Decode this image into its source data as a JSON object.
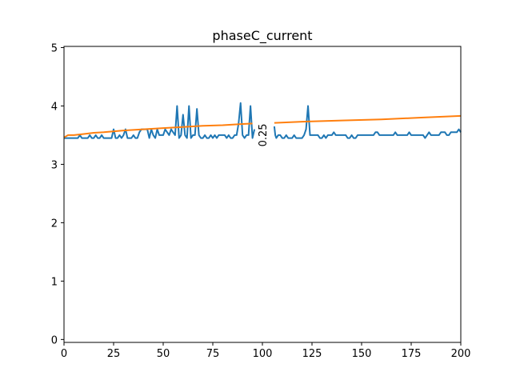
{
  "chart_data": {
    "type": "line",
    "title": "phaseC_current",
    "xlabel": "",
    "ylabel": "",
    "xlim": [
      0,
      200
    ],
    "ylim": [
      -0.05,
      5.02
    ],
    "xticks": [
      0,
      25,
      50,
      75,
      100,
      125,
      150,
      175,
      200
    ],
    "yticks": [
      0,
      1,
      2,
      3,
      4,
      5
    ],
    "grid": false,
    "annotation": {
      "text": "0.25",
      "x": 100,
      "y": 3.5,
      "rotation": -90
    },
    "series": [
      {
        "color": "#1f77b4",
        "segments": [
          [
            [
              0,
              3.45
            ],
            [
              1,
              3.45
            ],
            [
              2,
              3.45
            ],
            [
              3,
              3.45
            ],
            [
              4,
              3.45
            ],
            [
              5,
              3.45
            ],
            [
              6,
              3.45
            ],
            [
              7,
              3.45
            ],
            [
              8,
              3.5
            ],
            [
              9,
              3.45
            ],
            [
              10,
              3.45
            ],
            [
              11,
              3.45
            ],
            [
              12,
              3.45
            ],
            [
              13,
              3.5
            ],
            [
              14,
              3.45
            ],
            [
              15,
              3.45
            ],
            [
              16,
              3.5
            ],
            [
              17,
              3.45
            ],
            [
              18,
              3.45
            ],
            [
              19,
              3.5
            ],
            [
              20,
              3.45
            ],
            [
              21,
              3.45
            ],
            [
              22,
              3.45
            ],
            [
              23,
              3.45
            ],
            [
              24,
              3.45
            ],
            [
              25,
              3.6
            ],
            [
              26,
              3.45
            ],
            [
              27,
              3.45
            ],
            [
              28,
              3.5
            ],
            [
              29,
              3.45
            ],
            [
              30,
              3.5
            ],
            [
              31,
              3.6
            ],
            [
              32,
              3.45
            ],
            [
              33,
              3.45
            ],
            [
              34,
              3.45
            ],
            [
              35,
              3.5
            ],
            [
              36,
              3.45
            ],
            [
              37,
              3.45
            ],
            [
              38,
              3.55
            ],
            [
              39,
              3.6
            ],
            [
              40,
              3.6
            ],
            [
              41,
              3.6
            ],
            [
              42,
              3.6
            ],
            [
              43,
              3.45
            ],
            [
              44,
              3.6
            ],
            [
              45,
              3.5
            ],
            [
              46,
              3.45
            ],
            [
              47,
              3.6
            ],
            [
              48,
              3.5
            ],
            [
              49,
              3.5
            ],
            [
              50,
              3.5
            ],
            [
              51,
              3.6
            ],
            [
              52,
              3.55
            ],
            [
              53,
              3.5
            ],
            [
              54,
              3.6
            ],
            [
              55,
              3.55
            ],
            [
              56,
              3.5
            ],
            [
              57,
              4.0
            ],
            [
              58,
              3.45
            ],
            [
              59,
              3.5
            ],
            [
              60,
              3.85
            ],
            [
              61,
              3.5
            ],
            [
              62,
              3.45
            ],
            [
              63,
              4.0
            ],
            [
              64,
              3.45
            ],
            [
              65,
              3.5
            ],
            [
              66,
              3.5
            ],
            [
              67,
              3.95
            ],
            [
              68,
              3.5
            ],
            [
              69,
              3.45
            ],
            [
              70,
              3.45
            ],
            [
              71,
              3.5
            ],
            [
              72,
              3.45
            ],
            [
              73,
              3.45
            ],
            [
              74,
              3.5
            ],
            [
              75,
              3.45
            ],
            [
              76,
              3.5
            ],
            [
              77,
              3.45
            ],
            [
              78,
              3.5
            ],
            [
              79,
              3.5
            ],
            [
              80,
              3.5
            ],
            [
              81,
              3.5
            ],
            [
              82,
              3.45
            ],
            [
              83,
              3.5
            ],
            [
              84,
              3.45
            ],
            [
              85,
              3.45
            ],
            [
              86,
              3.5
            ],
            [
              87,
              3.5
            ],
            [
              88,
              3.7
            ],
            [
              89,
              4.05
            ],
            [
              90,
              3.5
            ],
            [
              91,
              3.45
            ],
            [
              92,
              3.5
            ],
            [
              93,
              3.5
            ],
            [
              94,
              4.0
            ],
            [
              95,
              3.45
            ],
            [
              96,
              3.6
            ]
          ],
          [
            [
              106,
              3.65
            ],
            [
              106.5,
              3.5
            ],
            [
              107,
              3.45
            ],
            [
              108,
              3.5
            ],
            [
              109,
              3.5
            ],
            [
              110,
              3.45
            ],
            [
              111,
              3.45
            ],
            [
              112,
              3.5
            ],
            [
              113,
              3.45
            ],
            [
              114,
              3.45
            ],
            [
              115,
              3.45
            ],
            [
              116,
              3.5
            ],
            [
              117,
              3.45
            ],
            [
              118,
              3.45
            ],
            [
              119,
              3.45
            ],
            [
              120,
              3.45
            ],
            [
              121,
              3.5
            ],
            [
              122,
              3.6
            ],
            [
              123,
              4.0
            ],
            [
              124,
              3.5
            ],
            [
              125,
              3.5
            ],
            [
              126,
              3.5
            ],
            [
              127,
              3.5
            ],
            [
              128,
              3.5
            ],
            [
              129,
              3.45
            ],
            [
              130,
              3.45
            ],
            [
              131,
              3.5
            ],
            [
              132,
              3.45
            ],
            [
              133,
              3.5
            ],
            [
              134,
              3.5
            ],
            [
              135,
              3.5
            ],
            [
              136,
              3.55
            ],
            [
              137,
              3.5
            ],
            [
              138,
              3.5
            ],
            [
              139,
              3.5
            ],
            [
              140,
              3.5
            ],
            [
              141,
              3.5
            ],
            [
              142,
              3.5
            ],
            [
              143,
              3.45
            ],
            [
              144,
              3.45
            ],
            [
              145,
              3.5
            ],
            [
              146,
              3.45
            ],
            [
              147,
              3.45
            ],
            [
              148,
              3.5
            ],
            [
              149,
              3.5
            ],
            [
              150,
              3.5
            ],
            [
              151,
              3.5
            ],
            [
              152,
              3.5
            ],
            [
              153,
              3.5
            ],
            [
              154,
              3.5
            ],
            [
              155,
              3.5
            ],
            [
              156,
              3.5
            ],
            [
              157,
              3.55
            ],
            [
              158,
              3.55
            ],
            [
              159,
              3.5
            ],
            [
              160,
              3.5
            ],
            [
              161,
              3.5
            ],
            [
              162,
              3.5
            ],
            [
              163,
              3.5
            ],
            [
              164,
              3.5
            ],
            [
              165,
              3.5
            ],
            [
              166,
              3.5
            ],
            [
              167,
              3.55
            ],
            [
              168,
              3.5
            ],
            [
              169,
              3.5
            ],
            [
              170,
              3.5
            ],
            [
              171,
              3.5
            ],
            [
              172,
              3.5
            ],
            [
              173,
              3.5
            ],
            [
              174,
              3.55
            ],
            [
              175,
              3.5
            ],
            [
              176,
              3.5
            ],
            [
              177,
              3.5
            ],
            [
              178,
              3.5
            ],
            [
              179,
              3.5
            ],
            [
              180,
              3.5
            ],
            [
              181,
              3.5
            ],
            [
              182,
              3.45
            ],
            [
              183,
              3.5
            ],
            [
              184,
              3.55
            ],
            [
              185,
              3.5
            ],
            [
              186,
              3.5
            ],
            [
              187,
              3.5
            ],
            [
              188,
              3.5
            ],
            [
              189,
              3.5
            ],
            [
              190,
              3.55
            ],
            [
              191,
              3.55
            ],
            [
              192,
              3.55
            ],
            [
              193,
              3.5
            ],
            [
              194,
              3.5
            ],
            [
              195,
              3.55
            ],
            [
              196,
              3.55
            ],
            [
              197,
              3.55
            ],
            [
              198,
              3.55
            ],
            [
              199,
              3.6
            ],
            [
              200,
              3.55
            ]
          ]
        ]
      },
      {
        "color": "#ff7f0e",
        "segments": [
          [
            [
              0,
              3.46
            ],
            [
              2,
              3.5
            ],
            [
              5,
              3.5
            ],
            [
              10,
              3.52
            ],
            [
              15,
              3.54
            ],
            [
              20,
              3.55
            ],
            [
              30,
              3.58
            ],
            [
              40,
              3.6
            ],
            [
              50,
              3.62
            ],
            [
              60,
              3.64
            ],
            [
              70,
              3.66
            ],
            [
              80,
              3.67
            ],
            [
              90,
              3.69
            ],
            [
              95,
              3.7
            ]
          ],
          [
            [
              106,
              3.71
            ],
            [
              120,
              3.73
            ],
            [
              140,
              3.75
            ],
            [
              160,
              3.77
            ],
            [
              180,
              3.8
            ],
            [
              200,
              3.83
            ]
          ]
        ]
      }
    ]
  }
}
